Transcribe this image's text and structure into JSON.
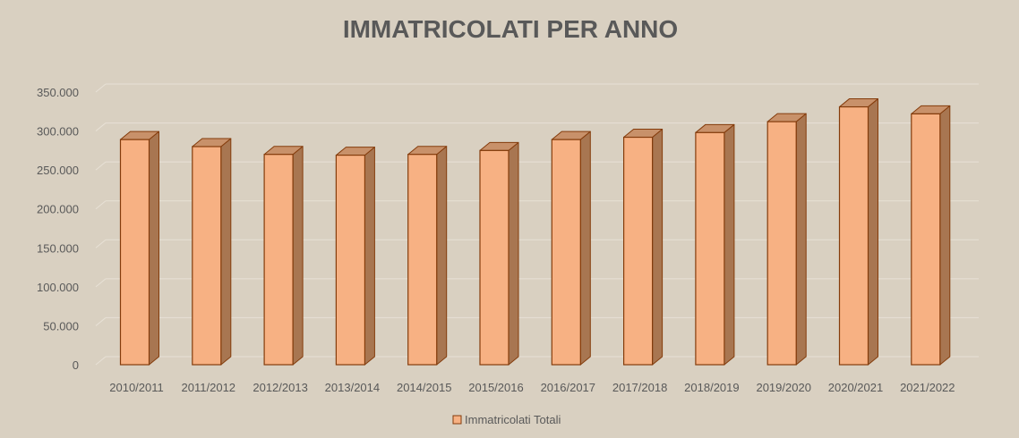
{
  "chart_data": {
    "type": "bar",
    "title": "IMMATRICOLATI PER ANNO",
    "xlabel": "",
    "ylabel": "",
    "categories": [
      "2010/2011",
      "2011/2012",
      "2012/2013",
      "2013/2014",
      "2014/2015",
      "2015/2016",
      "2016/2017",
      "2017/2018",
      "2018/2019",
      "2019/2020",
      "2020/2021",
      "2021/2022"
    ],
    "series": [
      {
        "name": "Immatricolati Totali",
        "values": [
          289000,
          280000,
          270000,
          269000,
          270000,
          275000,
          289000,
          292000,
          298000,
          312000,
          331000,
          322000
        ]
      }
    ],
    "ylim": [
      0,
      350000
    ],
    "yticks": [
      0,
      50000,
      100000,
      150000,
      200000,
      250000,
      300000,
      350000
    ],
    "ytick_labels": [
      "0",
      "50.000",
      "100.000",
      "150.000",
      "200.000",
      "250.000",
      "300.000",
      "350.000"
    ],
    "grid": true,
    "legend_position": "bottom",
    "style": "3d-column",
    "colors": {
      "bar_front": "#f7b183",
      "bar_side": "#a87651",
      "bar_top": "#c8916a",
      "bar_stroke": "#843c0c",
      "gridline": "#e8e1d6",
      "background": "#d9d0c1",
      "text": "#595959"
    }
  }
}
